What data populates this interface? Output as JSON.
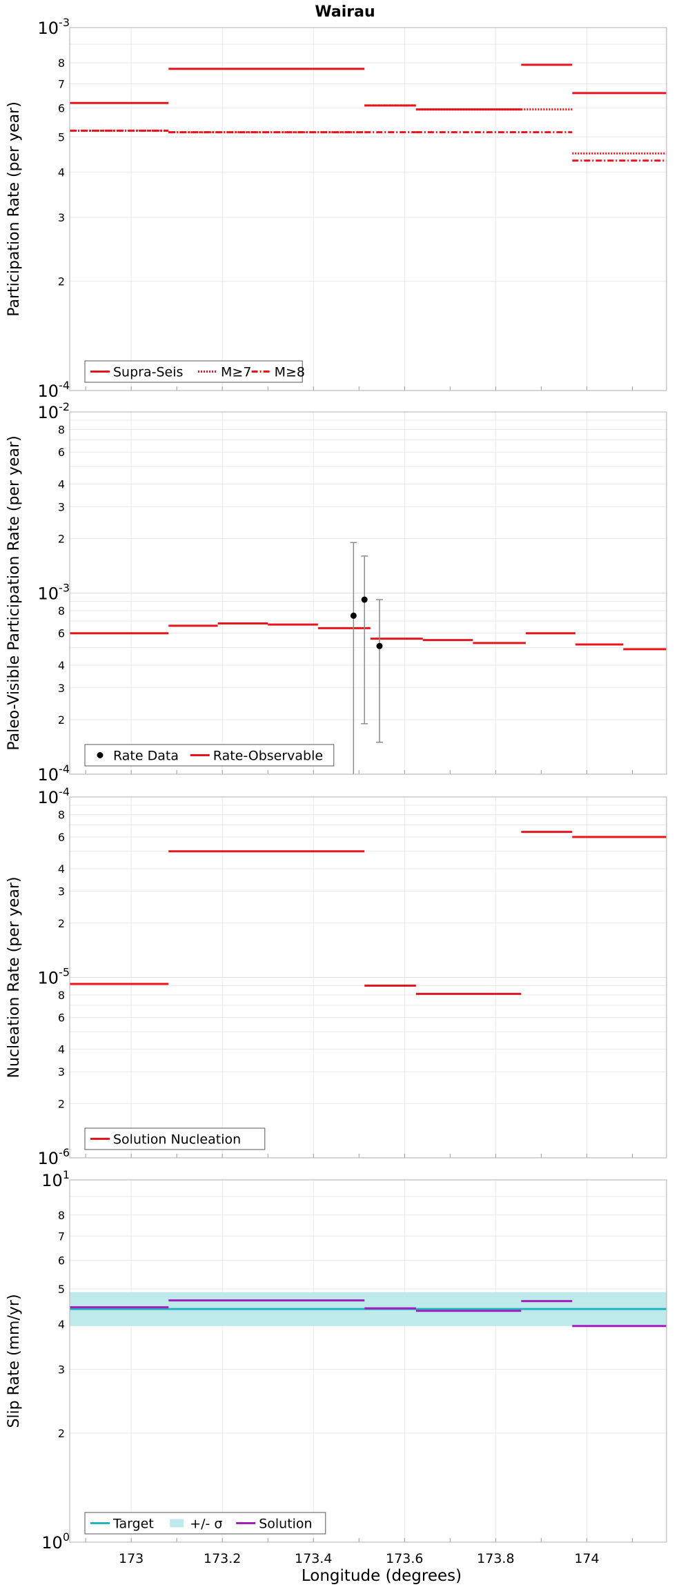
{
  "title": "Wairau",
  "xlabel": "Longitude (degrees)",
  "xlim": [
    172.865,
    174.175
  ],
  "x_ticks": [
    173,
    173.2,
    173.4,
    173.6,
    173.8,
    174
  ],
  "x_tick_labels": [
    "173",
    "173.2",
    "173.4",
    "173.6",
    "173.8",
    "174"
  ],
  "colors": {
    "red": "#e8141c",
    "cyan": "#22b4bf",
    "band": "#bfeaeb",
    "purple": "#a21dbc",
    "black": "#000000",
    "errorbar": "#8c8c8c",
    "grid": "#e9e9e9",
    "frame": "#bbbbbb"
  },
  "chart_data": [
    {
      "type": "line",
      "ylabel": "Participation Rate (per year)",
      "yscale": "log",
      "ylim": [
        0.0001,
        0.001
      ],
      "y_major_labels": [
        {
          "base": "10",
          "exp": "-4"
        },
        {
          "base": "10",
          "exp": "-3"
        }
      ],
      "y_minor_labels": [
        "2",
        "3",
        "4",
        "5",
        "6",
        "7",
        "8"
      ],
      "legend": [
        "Supra-Seis",
        "M≥7",
        "M≥8"
      ],
      "series": [
        {
          "name": "Supra-Seis",
          "style": "solid",
          "color": "red",
          "segments": [
            [
              172.865,
              173.082,
              0.00062
            ],
            [
              173.082,
              173.512,
              0.00077
            ],
            [
              173.512,
              173.625,
              0.00061
            ],
            [
              173.625,
              173.856,
              0.000595
            ],
            [
              173.856,
              173.968,
              0.00079
            ],
            [
              173.968,
              174.175,
              0.00066
            ]
          ]
        },
        {
          "name": "M≥7",
          "style": "dotted",
          "color": "red",
          "segments": [
            [
              172.865,
              173.082,
              0.00052
            ],
            [
              173.082,
              173.512,
              0.000515
            ],
            [
              173.512,
              173.625,
              0.00061
            ],
            [
              173.625,
              173.856,
              0.000595
            ],
            [
              173.856,
              173.968,
              0.000595
            ],
            [
              173.968,
              174.175,
              0.00045
            ]
          ]
        },
        {
          "name": "M≥8",
          "style": "dashdot",
          "color": "red",
          "segments": [
            [
              172.865,
              173.082,
              0.00052
            ],
            [
              173.082,
              173.512,
              0.000515
            ],
            [
              173.512,
              173.625,
              0.000515
            ],
            [
              173.625,
              173.856,
              0.000515
            ],
            [
              173.856,
              173.968,
              0.000515
            ],
            [
              173.968,
              174.175,
              0.00043
            ]
          ]
        }
      ]
    },
    {
      "type": "line",
      "ylabel": "Paleo-Visible Participation Rate (per year)",
      "yscale": "log",
      "ylim": [
        0.0001,
        0.01
      ],
      "y_major_labels": [
        {
          "base": "10",
          "exp": "-4"
        },
        {
          "base": "10",
          "exp": "-3"
        },
        {
          "base": "10",
          "exp": "-2"
        }
      ],
      "y_minor_labels": [
        "2",
        "3",
        "4",
        "6",
        "8",
        "2",
        "3",
        "4",
        "6",
        "8"
      ],
      "legend": [
        "Rate Data",
        "Rate-Observable"
      ],
      "series": [
        {
          "name": "Rate-Observable",
          "style": "solid",
          "color": "red",
          "segments": [
            [
              172.865,
              173.082,
              0.0006
            ],
            [
              173.082,
              173.19,
              0.00066
            ],
            [
              173.19,
              173.3,
              0.00068
            ],
            [
              173.3,
              173.41,
              0.00067
            ],
            [
              173.41,
              173.525,
              0.00064
            ],
            [
              173.525,
              173.64,
              0.00056
            ],
            [
              173.64,
              173.75,
              0.00055
            ],
            [
              173.75,
              173.866,
              0.00053
            ],
            [
              173.866,
              173.975,
              0.0006
            ],
            [
              173.975,
              174.08,
              0.00052
            ],
            [
              174.08,
              174.175,
              0.00049
            ]
          ]
        }
      ],
      "points": [
        {
          "name": "Rate Data",
          "x": 173.488,
          "y": 0.00075,
          "ylow": 8e-05,
          "yhigh": 0.0019
        },
        {
          "name": "Rate Data",
          "x": 173.512,
          "y": 0.00092,
          "ylow": 0.00019,
          "yhigh": 0.0016
        },
        {
          "name": "Rate Data",
          "x": 173.545,
          "y": 0.00051,
          "ylow": 0.00015,
          "yhigh": 0.00092
        }
      ]
    },
    {
      "type": "line",
      "ylabel": "Nucleation Rate (per year)",
      "yscale": "log",
      "ylim": [
        1e-06,
        0.0001
      ],
      "y_major_labels": [
        {
          "base": "10",
          "exp": "-6"
        },
        {
          "base": "10",
          "exp": "-5"
        },
        {
          "base": "10",
          "exp": "-4"
        }
      ],
      "y_minor_labels": [
        "2",
        "3",
        "4",
        "6",
        "8",
        "2",
        "3",
        "4",
        "6",
        "8"
      ],
      "legend": [
        "Solution Nucleation"
      ],
      "series": [
        {
          "name": "Solution Nucleation",
          "style": "solid",
          "color": "red",
          "segments": [
            [
              172.865,
              173.082,
              9.2e-06
            ],
            [
              173.082,
              173.512,
              5e-05
            ],
            [
              173.512,
              173.625,
              9e-06
            ],
            [
              173.625,
              173.856,
              8.1e-06
            ],
            [
              173.856,
              173.968,
              6.4e-05
            ],
            [
              173.968,
              174.175,
              6e-05
            ]
          ]
        }
      ]
    },
    {
      "type": "line",
      "ylabel": "Slip Rate (mm/yr)",
      "yscale": "log",
      "ylim": [
        1,
        10
      ],
      "y_major_labels": [
        {
          "base": "10",
          "exp": "0"
        },
        {
          "base": "10",
          "exp": "1"
        }
      ],
      "y_minor_labels": [
        "2",
        "3",
        "4",
        "5",
        "6",
        "7",
        "8"
      ],
      "legend": [
        "Target",
        "+/- σ",
        "Solution"
      ],
      "band": {
        "name": "+/- σ",
        "low": 3.95,
        "high": 4.9,
        "color": "band"
      },
      "series": [
        {
          "name": "Target",
          "style": "solid",
          "color": "cyan",
          "segments": [
            [
              172.865,
              174.175,
              4.4
            ]
          ]
        },
        {
          "name": "Solution",
          "style": "solid",
          "color": "purple",
          "segments": [
            [
              172.865,
              173.082,
              4.45
            ],
            [
              173.082,
              173.512,
              4.65
            ],
            [
              173.512,
              173.625,
              4.42
            ],
            [
              173.625,
              173.856,
              4.35
            ],
            [
              173.856,
              173.968,
              4.63
            ],
            [
              173.968,
              174.175,
              3.95
            ]
          ]
        }
      ]
    }
  ]
}
